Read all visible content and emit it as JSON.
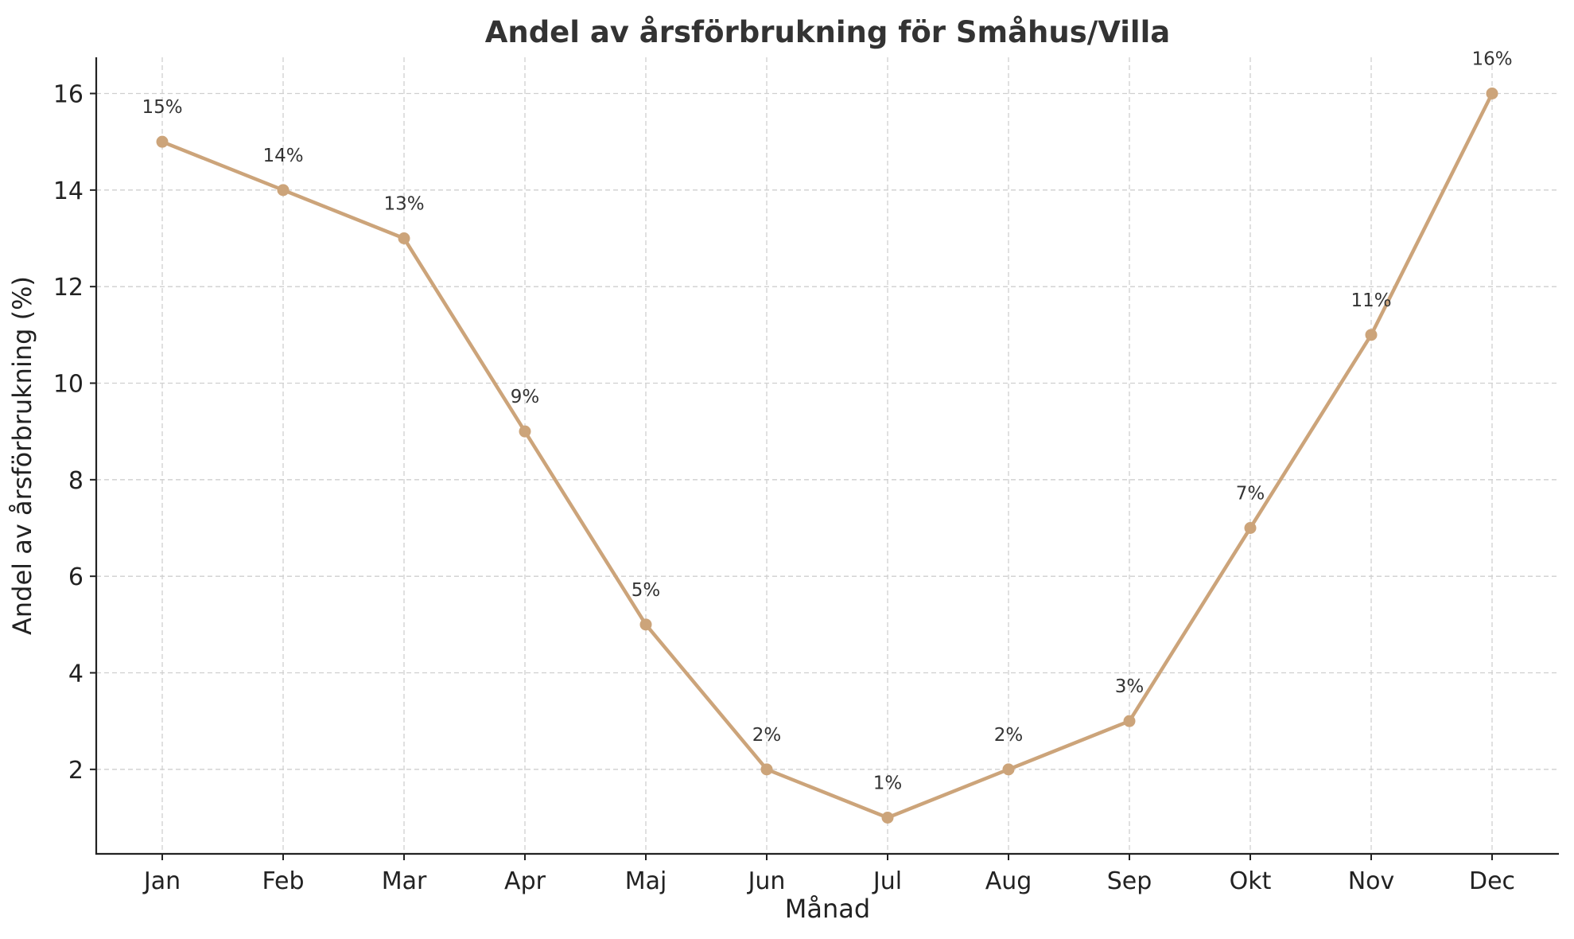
{
  "chart_data": {
    "type": "line",
    "title": "Andel av årsförbrukning för Småhus/Villa",
    "xlabel": "Månad",
    "ylabel": "Andel av årsförbrukning (%)",
    "categories": [
      "Jan",
      "Feb",
      "Mar",
      "Apr",
      "Maj",
      "Jun",
      "Jul",
      "Aug",
      "Sep",
      "Okt",
      "Nov",
      "Dec"
    ],
    "values": [
      15,
      14,
      13,
      9,
      5,
      2,
      1,
      2,
      3,
      7,
      11,
      16
    ],
    "data_labels": [
      "15%",
      "14%",
      "13%",
      "9%",
      "5%",
      "2%",
      "1%",
      "2%",
      "3%",
      "7%",
      "11%",
      "16%"
    ],
    "yticks": [
      2,
      4,
      6,
      8,
      10,
      12,
      14,
      16
    ],
    "ylim": [
      0.25,
      16.75
    ],
    "grid": true,
    "line_color": "#cca47a"
  }
}
